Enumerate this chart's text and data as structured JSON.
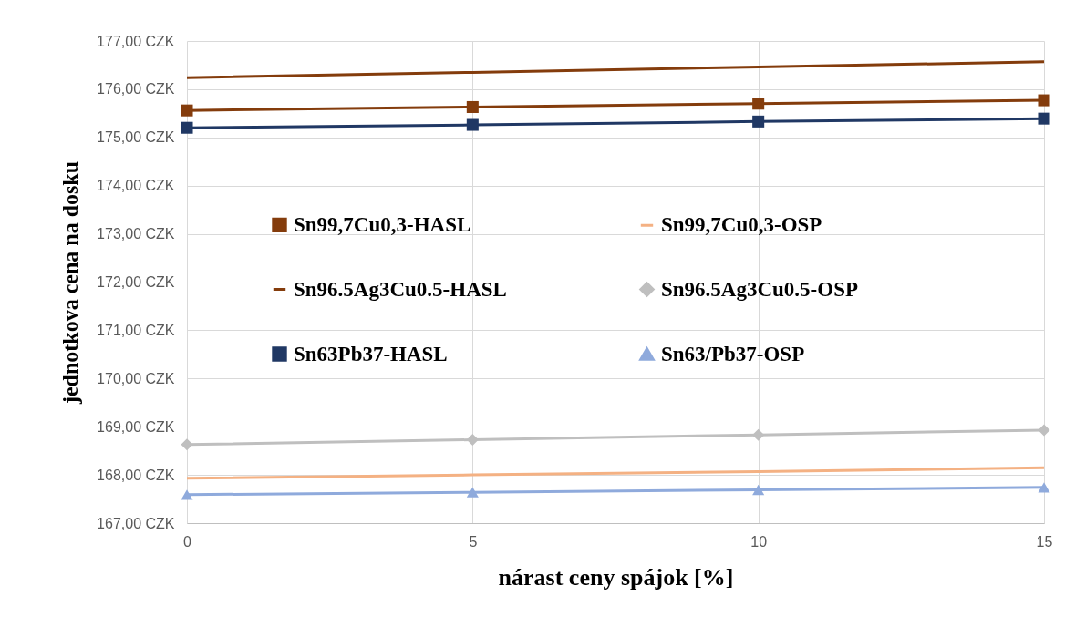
{
  "chart_data": {
    "type": "line",
    "xlabel": "nárast ceny spájok [%]",
    "ylabel": "jednotkova cena na dosku",
    "x": [
      0,
      5,
      10,
      15
    ],
    "series": [
      {
        "name": "Sn99,7Cu0,3-HASL",
        "color": "#843c0c",
        "marker": "square",
        "values": [
          175.56,
          175.63,
          175.7,
          175.77
        ]
      },
      {
        "name": "Sn99,7Cu0,3-OSP",
        "color": "#f4b183",
        "marker": "none",
        "values": [
          167.93,
          168.0,
          168.07,
          168.15
        ]
      },
      {
        "name": "Sn96.5Ag3Cu0.5-HASL",
        "color": "#843c0c",
        "marker": "none",
        "values": [
          176.24,
          176.35,
          176.46,
          176.57
        ]
      },
      {
        "name": "Sn96.5Ag3Cu0.5-OSP",
        "color": "#bfbfbf",
        "marker": "diamond",
        "values": [
          168.63,
          168.73,
          168.83,
          168.93
        ]
      },
      {
        "name": "Sn63Pb37-HASL",
        "color": "#203864",
        "marker": "square",
        "values": [
          175.2,
          175.26,
          175.33,
          175.39
        ]
      },
      {
        "name": "Sn63/Pb37-OSP",
        "color": "#8faadc",
        "marker": "triangle",
        "values": [
          167.59,
          167.64,
          167.69,
          167.74
        ]
      }
    ],
    "xlim": [
      0,
      15
    ],
    "xticks": [
      0,
      5,
      10,
      15
    ],
    "ylim": [
      167,
      177
    ],
    "yticks": [
      {
        "value": 167,
        "label": "167,00 CZK"
      },
      {
        "value": 168,
        "label": "168,00 CZK"
      },
      {
        "value": 169,
        "label": "169,00 CZK"
      },
      {
        "value": 170,
        "label": "170,00 CZK"
      },
      {
        "value": 171,
        "label": "171,00 CZK"
      },
      {
        "value": 172,
        "label": "172,00 CZK"
      },
      {
        "value": 173,
        "label": "173,00 CZK"
      },
      {
        "value": 174,
        "label": "174,00 CZK"
      },
      {
        "value": 175,
        "label": "175,00 CZK"
      },
      {
        "value": 176,
        "label": "176,00 CZK"
      },
      {
        "value": 177,
        "label": "177,00 CZK"
      }
    ],
    "grid": true,
    "legend": "left",
    "line_style": "solid"
  }
}
